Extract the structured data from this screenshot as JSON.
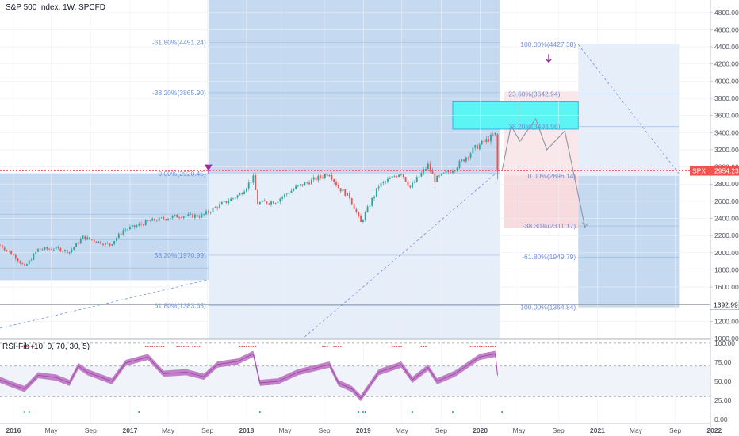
{
  "header": {
    "title": "S&P 500 Index, 1W, SPCFD"
  },
  "rsi_panel": {
    "title": "RSI-Fib (10, 0, 70, 30, 5)"
  },
  "price_tag": {
    "symbol": "SPX",
    "value": "2954.23"
  },
  "line_tag": {
    "value": "1392.99"
  },
  "colors": {
    "up": "#26a69a",
    "down": "#ef5350",
    "zone": "#c5daf1",
    "zone_light": "#e6eef9",
    "target": "#5cf5f5",
    "red_zone": "#f6d7dc",
    "rsi": "#b96cbf",
    "fib": "#6d8fd8",
    "marker_purple": "#9c27b0"
  },
  "chart_data": [
    {
      "type": "candlestick",
      "title": "S&P 500 Index, 1W, SPCFD",
      "y_ticks": [
        1000,
        1200,
        1400,
        1600,
        1800,
        2000,
        2200,
        2400,
        2600,
        2800,
        3000,
        3200,
        3400,
        3600,
        3800,
        4000,
        4200,
        4400,
        4600,
        4800
      ],
      "y_range": [
        1000,
        4900
      ],
      "x_range": [
        "2015-11-23",
        "2021-12-20"
      ],
      "x_labels": [
        {
          "date": "2016-01-04",
          "label": "2016",
          "bold": true
        },
        {
          "date": "2016-05-01",
          "label": "May"
        },
        {
          "date": "2016-09-01",
          "label": "Sep"
        },
        {
          "date": "2017-01-02",
          "label": "2017",
          "bold": true
        },
        {
          "date": "2017-05-01",
          "label": "May"
        },
        {
          "date": "2017-09-01",
          "label": "Sep"
        },
        {
          "date": "2018-01-01",
          "label": "2018",
          "bold": true
        },
        {
          "date": "2018-05-01",
          "label": "May"
        },
        {
          "date": "2018-09-01",
          "label": "Sep"
        },
        {
          "date": "2019-01-01",
          "label": "2019",
          "bold": true
        },
        {
          "date": "2019-05-01",
          "label": "May"
        },
        {
          "date": "2019-09-01",
          "label": "Sep"
        },
        {
          "date": "2020-01-01",
          "label": "2020",
          "bold": true
        },
        {
          "date": "2020-05-01",
          "label": "May"
        },
        {
          "date": "2020-09-01",
          "label": "Sep"
        },
        {
          "date": "2021-01-01",
          "label": "2021",
          "bold": true
        },
        {
          "date": "2021-05-01",
          "label": "May"
        },
        {
          "date": "2021-09-01",
          "label": "Sep"
        },
        {
          "date": "2022-01-01",
          "label": "2022",
          "bold": true
        }
      ],
      "close_path": [
        [
          "2015-11-23",
          2090
        ],
        [
          "2016-01-11",
          1950
        ],
        [
          "2016-02-08",
          1830
        ],
        [
          "2016-03-21",
          2040
        ],
        [
          "2016-05-16",
          2050
        ],
        [
          "2016-06-27",
          2010
        ],
        [
          "2016-08-08",
          2180
        ],
        [
          "2016-10-31",
          2090
        ],
        [
          "2016-12-12",
          2260
        ],
        [
          "2017-03-06",
          2370
        ],
        [
          "2017-06-05",
          2430
        ],
        [
          "2017-08-14",
          2430
        ],
        [
          "2017-10-02",
          2540
        ],
        [
          "2017-12-11",
          2680
        ],
        [
          "2018-01-22",
          2870
        ],
        [
          "2018-02-05",
          2580
        ],
        [
          "2018-04-02",
          2600
        ],
        [
          "2018-06-04",
          2760
        ],
        [
          "2018-09-17",
          2930
        ],
        [
          "2018-10-15",
          2760
        ],
        [
          "2018-11-19",
          2650
        ],
        [
          "2018-12-24",
          2350
        ],
        [
          "2019-02-18",
          2780
        ],
        [
          "2019-04-29",
          2940
        ],
        [
          "2019-05-27",
          2760
        ],
        [
          "2019-07-22",
          3020
        ],
        [
          "2019-08-12",
          2850
        ],
        [
          "2019-10-14",
          2990
        ],
        [
          "2019-12-16",
          3220
        ],
        [
          "2020-02-17",
          3380
        ],
        [
          "2020-02-24",
          2954
        ]
      ],
      "fib_labels": [
        {
          "text": "-61.80%(4451.24)",
          "x": "2017-09-04",
          "y": 4451.24
        },
        {
          "text": "-38.20%(3865.90)",
          "x": "2017-09-04",
          "y": 3865.9
        },
        {
          "text": "0.00%(2920.45)",
          "x": "2017-09-04",
          "y": 2920.45
        },
        {
          "text": "38.20%(1970.99)",
          "x": "2017-09-04",
          "y": 1970.99
        },
        {
          "text": "61.80%(1383.65)",
          "x": "2017-09-04",
          "y": 1383.65
        },
        {
          "text": "100.00%(4427.38)",
          "x": "2020-11-02",
          "y": 4427.38
        },
        {
          "text": "0.00%(2896.14)",
          "x": "2020-11-02",
          "y": 2896.14
        },
        {
          "text": "-38.30%(2311.17)",
          "x": "2020-11-02",
          "y": 2311.17
        },
        {
          "text": "-61.80%(1949.79)",
          "x": "2020-11-02",
          "y": 1949.79
        },
        {
          "text": "-100.00%(1364.84)",
          "x": "2020-11-02",
          "y": 1364.84
        },
        {
          "text": "23.60%(3642.94)",
          "x": "2020-09-14",
          "y": 3850
        },
        {
          "text": "38.20%(3493.96)",
          "x": "2020-09-14",
          "y": 3470
        }
      ],
      "horizontal_lines": {
        "current_price": 2954.23,
        "gray": 1392.99
      }
    },
    {
      "type": "line",
      "title": "RSI-Fib (10, 0, 70, 30, 5)",
      "y_ticks": [
        0,
        25,
        50,
        75,
        100
      ],
      "y_tick_labels": [
        "0.00",
        "25.00",
        "50.00",
        "75.00",
        "100.00"
      ],
      "y_range": [
        -5,
        103
      ],
      "upper_band": 70,
      "lower_band": 30,
      "series": [
        {
          "values": [
            [
              "2015-11-23",
              52
            ],
            [
              "2016-01-11",
              44
            ],
            [
              "2016-02-08",
              40
            ],
            [
              "2016-03-21",
              58
            ],
            [
              "2016-05-16",
              55
            ],
            [
              "2016-06-27",
              48
            ],
            [
              "2016-07-25",
              70
            ],
            [
              "2016-08-22",
              62
            ],
            [
              "2016-11-07",
              50
            ],
            [
              "2016-12-19",
              74
            ],
            [
              "2017-02-27",
              82
            ],
            [
              "2017-04-17",
              60
            ],
            [
              "2017-06-26",
              62
            ],
            [
              "2017-08-21",
              56
            ],
            [
              "2017-10-02",
              72
            ],
            [
              "2017-12-04",
              76
            ],
            [
              "2018-01-22",
              86
            ],
            [
              "2018-02-12",
              48
            ],
            [
              "2018-04-09",
              50
            ],
            [
              "2018-06-11",
              62
            ],
            [
              "2018-09-17",
              72
            ],
            [
              "2018-10-15",
              48
            ],
            [
              "2018-11-26",
              40
            ],
            [
              "2018-12-24",
              28
            ],
            [
              "2019-02-18",
              62
            ],
            [
              "2019-04-29",
              72
            ],
            [
              "2019-06-03",
              52
            ],
            [
              "2019-07-22",
              68
            ],
            [
              "2019-08-19",
              50
            ],
            [
              "2019-10-14",
              60
            ],
            [
              "2019-12-30",
              82
            ],
            [
              "2020-02-17",
              86
            ],
            [
              "2020-02-24",
              58
            ]
          ]
        }
      ]
    }
  ]
}
